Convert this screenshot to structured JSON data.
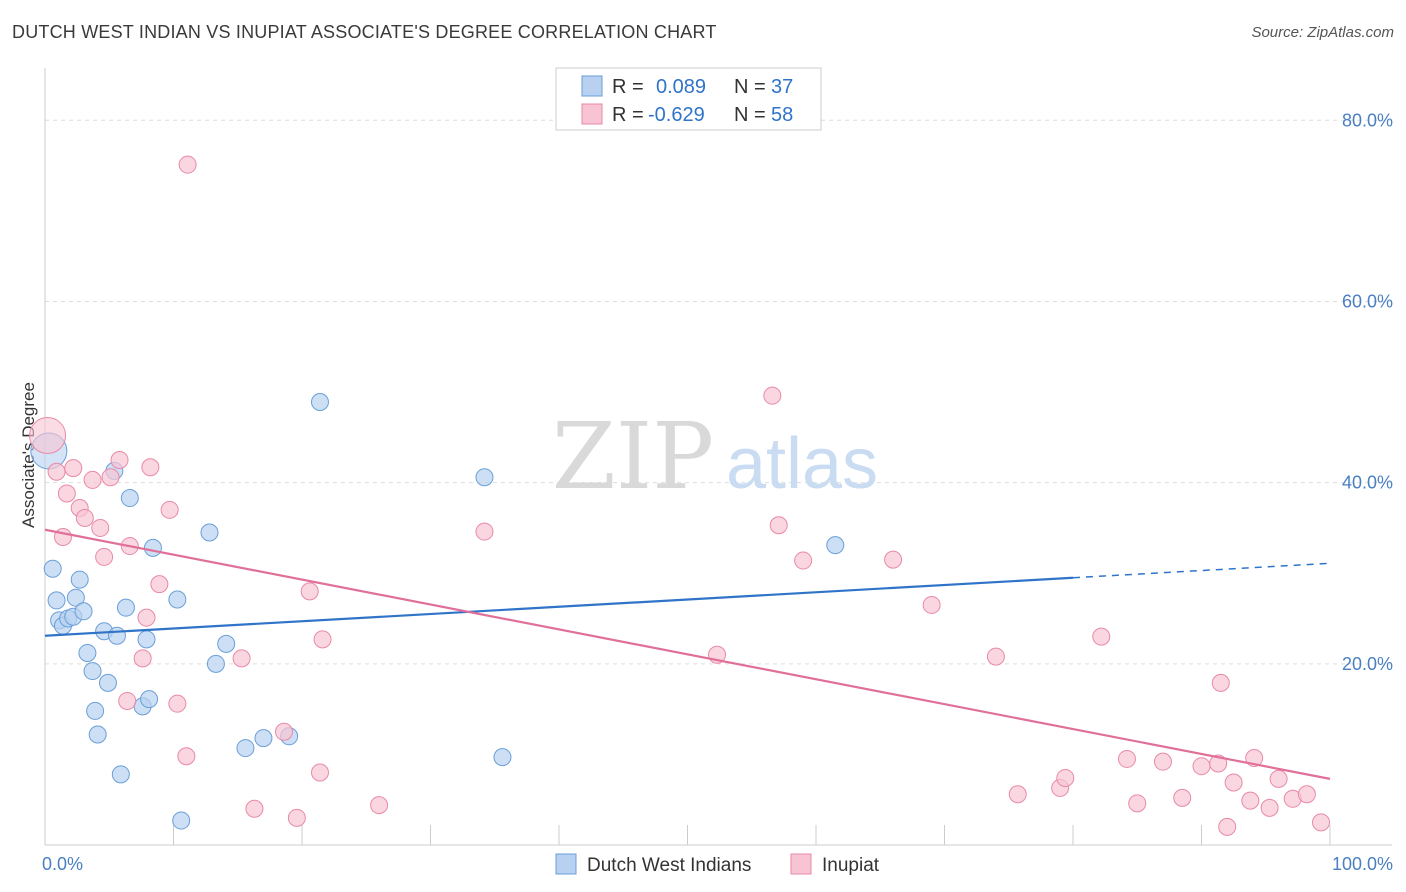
{
  "title": "DUTCH WEST INDIAN VS INUPIAT ASSOCIATE'S DEGREE CORRELATION CHART",
  "source": "Source: ZipAtlas.com",
  "watermark": {
    "zip": "ZIP",
    "atlas": "atlas"
  },
  "colors": {
    "blue_fill": "#b8d1f0",
    "blue_stroke": "#6a9fd8",
    "blue_line": "#2f74c8",
    "pink_fill": "#f8c4d4",
    "pink_stroke": "#e88aa8",
    "pink_line": "#e0709a",
    "tick_text": "#4a7fc1",
    "grid": "#dddddd"
  },
  "legend": {
    "rows": [
      {
        "r_label": "R =",
        "r_value": "0.089",
        "n_label": "N =",
        "n_value": "37"
      },
      {
        "r_label": "R =",
        "r_value": "-0.629",
        "n_label": "N =",
        "n_value": "58"
      }
    ]
  },
  "chart_data": {
    "type": "scatter",
    "ylabel": "Associate's Degree",
    "xlim": [
      0,
      100
    ],
    "ylim": [
      0,
      85
    ],
    "x_ticks": [
      {
        "value": 0,
        "label": "0.0%"
      },
      {
        "value": 100,
        "label": "100.0%"
      }
    ],
    "y_ticks": [
      {
        "value": 20,
        "label": "20.0%"
      },
      {
        "value": 40,
        "label": "40.0%"
      },
      {
        "value": 60,
        "label": "60.0%"
      },
      {
        "value": 80,
        "label": "80.0%"
      }
    ],
    "grid": true,
    "legend_position": "top-center",
    "series": [
      {
        "name": "Dutch West Indians",
        "color": "blue",
        "points": [
          [
            0.3,
            43.5
          ],
          [
            0.6,
            30.5
          ],
          [
            0.9,
            27.0
          ],
          [
            1.1,
            24.8
          ],
          [
            1.4,
            24.2
          ],
          [
            1.8,
            25.0
          ],
          [
            2.2,
            25.2
          ],
          [
            2.4,
            27.3
          ],
          [
            2.7,
            29.3
          ],
          [
            3.0,
            25.8
          ],
          [
            3.3,
            21.2
          ],
          [
            3.7,
            19.2
          ],
          [
            3.9,
            14.8
          ],
          [
            4.1,
            12.2
          ],
          [
            4.6,
            23.6
          ],
          [
            4.9,
            17.9
          ],
          [
            5.6,
            23.1
          ],
          [
            5.9,
            7.8
          ],
          [
            6.3,
            26.2
          ],
          [
            6.6,
            38.3
          ],
          [
            7.6,
            15.3
          ],
          [
            7.9,
            22.7
          ],
          [
            8.1,
            16.1
          ],
          [
            8.4,
            32.8
          ],
          [
            10.3,
            27.1
          ],
          [
            10.6,
            2.7
          ],
          [
            12.8,
            34.5
          ],
          [
            13.3,
            20.0
          ],
          [
            14.1,
            22.2
          ],
          [
            15.6,
            10.7
          ],
          [
            17.0,
            11.8
          ],
          [
            19.0,
            12.0
          ],
          [
            21.4,
            48.9
          ],
          [
            34.2,
            40.6
          ],
          [
            35.6,
            9.7
          ],
          [
            61.5,
            33.1
          ],
          [
            5.4,
            41.3
          ]
        ],
        "trend": {
          "x0": 0,
          "y0": 23.1,
          "x1": 80,
          "y1": 29.5,
          "dash_x1": 100,
          "dash_y1": 31.1
        }
      },
      {
        "name": "Inupiat",
        "color": "pink",
        "points": [
          [
            0.2,
            45.2
          ],
          [
            0.9,
            41.2
          ],
          [
            1.4,
            34.0
          ],
          [
            1.7,
            38.8
          ],
          [
            2.2,
            41.6
          ],
          [
            2.7,
            37.2
          ],
          [
            3.1,
            36.1
          ],
          [
            3.7,
            40.3
          ],
          [
            4.3,
            35.0
          ],
          [
            4.6,
            31.8
          ],
          [
            5.1,
            40.6
          ],
          [
            5.8,
            42.5
          ],
          [
            6.4,
            15.9
          ],
          [
            6.6,
            33.0
          ],
          [
            7.6,
            20.6
          ],
          [
            7.9,
            25.1
          ],
          [
            8.2,
            41.7
          ],
          [
            8.9,
            28.8
          ],
          [
            9.7,
            37.0
          ],
          [
            10.3,
            15.6
          ],
          [
            11.0,
            9.8
          ],
          [
            11.1,
            75.1
          ],
          [
            15.3,
            20.6
          ],
          [
            16.3,
            4.0
          ],
          [
            18.6,
            12.5
          ],
          [
            19.6,
            3.0
          ],
          [
            20.6,
            28.0
          ],
          [
            21.4,
            8.0
          ],
          [
            21.6,
            22.7
          ],
          [
            26.0,
            4.4
          ],
          [
            34.2,
            34.6
          ],
          [
            52.3,
            21.0
          ],
          [
            56.6,
            49.6
          ],
          [
            57.1,
            35.3
          ],
          [
            59.0,
            31.4
          ],
          [
            66.0,
            31.5
          ],
          [
            69.0,
            26.5
          ],
          [
            74.0,
            20.8
          ],
          [
            75.7,
            5.6
          ],
          [
            79.0,
            6.3
          ],
          [
            79.4,
            7.4
          ],
          [
            82.2,
            23.0
          ],
          [
            84.2,
            9.5
          ],
          [
            85.0,
            4.6
          ],
          [
            87.0,
            9.2
          ],
          [
            88.5,
            5.2
          ],
          [
            90.0,
            8.7
          ],
          [
            91.3,
            9.0
          ],
          [
            91.5,
            17.9
          ],
          [
            92.0,
            2.0
          ],
          [
            92.5,
            6.9
          ],
          [
            93.8,
            4.9
          ],
          [
            94.1,
            9.6
          ],
          [
            95.3,
            4.1
          ],
          [
            96.0,
            7.3
          ],
          [
            97.1,
            5.1
          ],
          [
            98.2,
            5.6
          ],
          [
            99.3,
            2.5
          ]
        ],
        "trend": {
          "x0": 0,
          "y0": 34.8,
          "x1": 100,
          "y1": 7.3
        }
      }
    ],
    "bottom_legend": [
      "Dutch West Indians",
      "Inupiat"
    ]
  }
}
